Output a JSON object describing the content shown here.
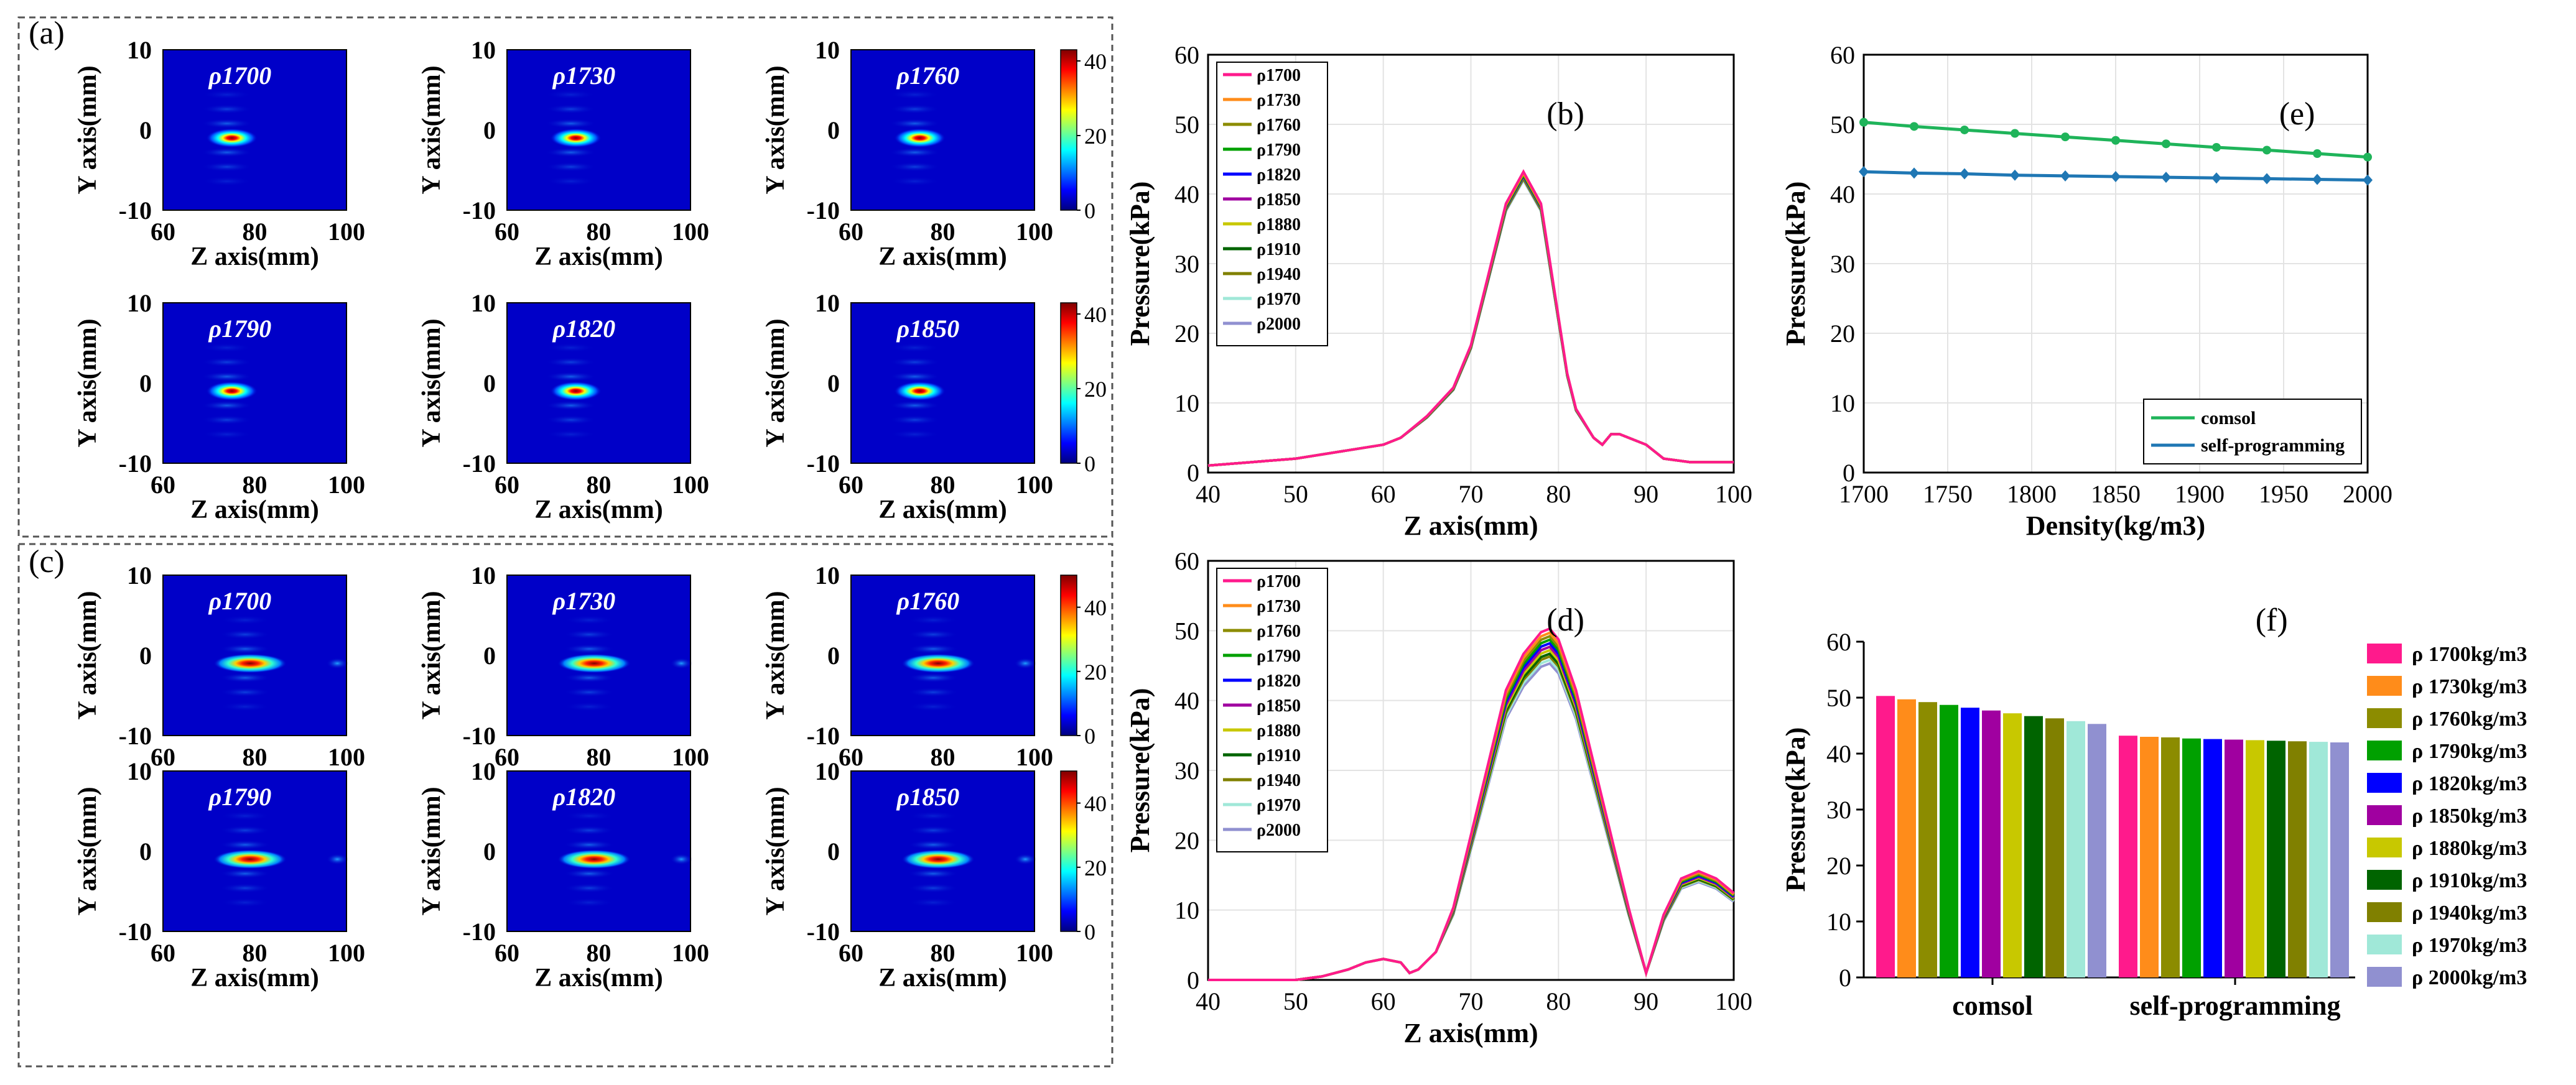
{
  "panel_labels": {
    "a": "(a)",
    "b": "(b)",
    "c": "(c)",
    "d": "(d)",
    "e": "(e)",
    "f": "(f)"
  },
  "colors": {
    "grid": "#e3e3e3",
    "axis": "#000000",
    "heat_bg": "#0000c8",
    "dashed": "#555555",
    "rho1700": "#ff1a8c",
    "rho1730": "#ff8c1a",
    "rho1760": "#8c8c00",
    "rho1790": "#00a000",
    "rho1820": "#0000ff",
    "rho1850": "#a000a0",
    "rho1880": "#c8c800",
    "rho1910": "#006400",
    "rho1940": "#808000",
    "rho1970": "#a0e8d8",
    "rho2000": "#9090d0",
    "comsol": "#1fb45a",
    "self": "#1f77b4"
  },
  "chart_data": [
    {
      "id": "a",
      "type": "heatmap",
      "title": "(a)",
      "panels": [
        "ρ1700",
        "ρ1730",
        "ρ1760",
        "ρ1790",
        "ρ1820",
        "ρ1850"
      ],
      "xlabel": "Z axis(mm)",
      "ylabel": "Y axis(mm)",
      "xlim": [
        60,
        100
      ],
      "ylim": [
        -10,
        10
      ],
      "x_ticks": [
        "60",
        "80",
        "100"
      ],
      "y_ticks": [
        "10",
        "0",
        "-10"
      ],
      "colorbar": {
        "range": [
          0,
          43
        ],
        "ticks": [
          "40",
          "20",
          "0"
        ]
      },
      "focus_z": 75,
      "focus_y": -1,
      "peak": 43
    },
    {
      "id": "c",
      "type": "heatmap",
      "title": "(c)",
      "panels": [
        "ρ1700",
        "ρ1730",
        "ρ1760",
        "ρ1790",
        "ρ1820",
        "ρ1850"
      ],
      "xlabel": "Z axis(mm)",
      "ylabel": "Y axis(mm)",
      "xlim": [
        60,
        100
      ],
      "ylim": [
        -10,
        10
      ],
      "x_ticks": [
        "60",
        "80",
        "100"
      ],
      "y_ticks": [
        "10",
        "0",
        "-10"
      ],
      "colorbar": {
        "range": [
          0,
          50
        ],
        "ticks": [
          "40",
          "20",
          "0"
        ]
      },
      "focus_z": 79,
      "focus_y": -1,
      "peak": 50
    },
    {
      "id": "b",
      "type": "line",
      "title": "(b)",
      "xlabel": "Z axis(mm)",
      "ylabel": "Pressure(kPa)",
      "xlim": [
        40,
        100
      ],
      "ylim": [
        0,
        60
      ],
      "x_ticks": [
        "40",
        "50",
        "60",
        "70",
        "80",
        "90",
        "100"
      ],
      "y_ticks": [
        "0",
        "10",
        "20",
        "30",
        "40",
        "50",
        "60"
      ],
      "legend": [
        "ρ1700",
        "ρ1730",
        "ρ1760",
        "ρ1790",
        "ρ1820",
        "ρ1850",
        "ρ1880",
        "ρ1910",
        "ρ1940",
        "ρ1970",
        "ρ2000"
      ],
      "x": [
        40,
        45,
        50,
        55,
        60,
        62,
        65,
        68,
        70,
        72,
        74,
        76,
        78,
        80,
        81,
        82,
        84,
        85,
        86,
        87,
        88,
        90,
        92,
        95,
        100
      ],
      "base": [
        1,
        1.5,
        2,
        3,
        4,
        5,
        8,
        12,
        18,
        28,
        38,
        42.5,
        38,
        22,
        14,
        9,
        5,
        4,
        5.5,
        5.5,
        5,
        4,
        2,
        1.5,
        1.5
      ],
      "peaks": [
        43.2,
        43.0,
        42.9,
        42.7,
        42.6,
        42.5,
        42.4,
        42.3,
        42.2,
        42.1,
        42.0
      ]
    },
    {
      "id": "d",
      "type": "line",
      "title": "(d)",
      "xlabel": "Z axis(mm)",
      "ylabel": "Pressure(kPa)",
      "xlim": [
        40,
        100
      ],
      "ylim": [
        0,
        60
      ],
      "x_ticks": [
        "40",
        "50",
        "60",
        "70",
        "80",
        "90",
        "100"
      ],
      "y_ticks": [
        "0",
        "10",
        "20",
        "30",
        "40",
        "50",
        "60"
      ],
      "legend": [
        "ρ1700",
        "ρ1730",
        "ρ1760",
        "ρ1790",
        "ρ1820",
        "ρ1850",
        "ρ1880",
        "ρ1910",
        "ρ1940",
        "ρ1970",
        "ρ2000"
      ],
      "x": [
        40,
        50,
        53,
        56,
        58,
        60,
        62,
        63,
        64,
        66,
        68,
        70,
        72,
        74,
        76,
        78,
        79,
        80,
        82,
        84,
        86,
        88,
        90,
        92,
        94,
        96,
        98,
        100
      ],
      "base": [
        0,
        0,
        0.5,
        1.5,
        2.5,
        3,
        2.5,
        1,
        1.5,
        4,
        10,
        20,
        30,
        40,
        45,
        48,
        48.5,
        47,
        40,
        30,
        20,
        10,
        1,
        9,
        14,
        15,
        14,
        12
      ],
      "peaks": [
        50.3,
        49.7,
        49.2,
        48.7,
        48.2,
        47.7,
        47.2,
        46.7,
        46.3,
        45.8,
        45.3
      ]
    },
    {
      "id": "e",
      "type": "line",
      "title": "(e)",
      "xlabel": "Density(kg/m3)",
      "ylabel": "Pressure(kPa)",
      "xlim": [
        1700,
        2000
      ],
      "ylim": [
        0,
        60
      ],
      "x_ticks": [
        "1700",
        "1750",
        "1800",
        "1850",
        "1900",
        "1950",
        "2000"
      ],
      "y_ticks": [
        "0",
        "10",
        "20",
        "30",
        "40",
        "50",
        "60"
      ],
      "x": [
        1700,
        1730,
        1760,
        1790,
        1820,
        1850,
        1880,
        1910,
        1940,
        1970,
        2000
      ],
      "series": [
        {
          "name": "comsol",
          "values": [
            50.3,
            49.7,
            49.2,
            48.7,
            48.2,
            47.7,
            47.2,
            46.7,
            46.3,
            45.8,
            45.3
          ]
        },
        {
          "name": "self-programming",
          "values": [
            43.2,
            43.0,
            42.9,
            42.7,
            42.6,
            42.5,
            42.4,
            42.3,
            42.2,
            42.1,
            42.0
          ]
        }
      ]
    },
    {
      "id": "f",
      "type": "bar",
      "title": "(f)",
      "ylabel": "Pressure(kPa)",
      "ylim": [
        0,
        60
      ],
      "y_ticks": [
        "0",
        "10",
        "20",
        "30",
        "40",
        "50",
        "60"
      ],
      "categories": [
        "comsol",
        "self-programming"
      ],
      "legend": [
        "ρ 1700kg/m3",
        "ρ 1730kg/m3",
        "ρ 1760kg/m3",
        "ρ 1790kg/m3",
        "ρ 1820kg/m3",
        "ρ 1850kg/m3",
        "ρ 1880kg/m3",
        "ρ 1910kg/m3",
        "ρ 1940kg/m3",
        "ρ 1970kg/m3",
        "ρ 2000kg/m3"
      ],
      "series": [
        {
          "name": "ρ 1700kg/m3",
          "values": [
            50.3,
            43.2
          ]
        },
        {
          "name": "ρ 1730kg/m3",
          "values": [
            49.7,
            43.0
          ]
        },
        {
          "name": "ρ 1760kg/m3",
          "values": [
            49.2,
            42.9
          ]
        },
        {
          "name": "ρ 1790kg/m3",
          "values": [
            48.7,
            42.7
          ]
        },
        {
          "name": "ρ 1820kg/m3",
          "values": [
            48.2,
            42.6
          ]
        },
        {
          "name": "ρ 1850kg/m3",
          "values": [
            47.7,
            42.5
          ]
        },
        {
          "name": "ρ 1880kg/m3",
          "values": [
            47.2,
            42.4
          ]
        },
        {
          "name": "ρ 1910kg/m3",
          "values": [
            46.7,
            42.3
          ]
        },
        {
          "name": "ρ 1940kg/m3",
          "values": [
            46.3,
            42.2
          ]
        },
        {
          "name": "ρ 1970kg/m3",
          "values": [
            45.8,
            42.1
          ]
        },
        {
          "name": "ρ 2000kg/m3",
          "values": [
            45.3,
            42.0
          ]
        }
      ]
    }
  ]
}
